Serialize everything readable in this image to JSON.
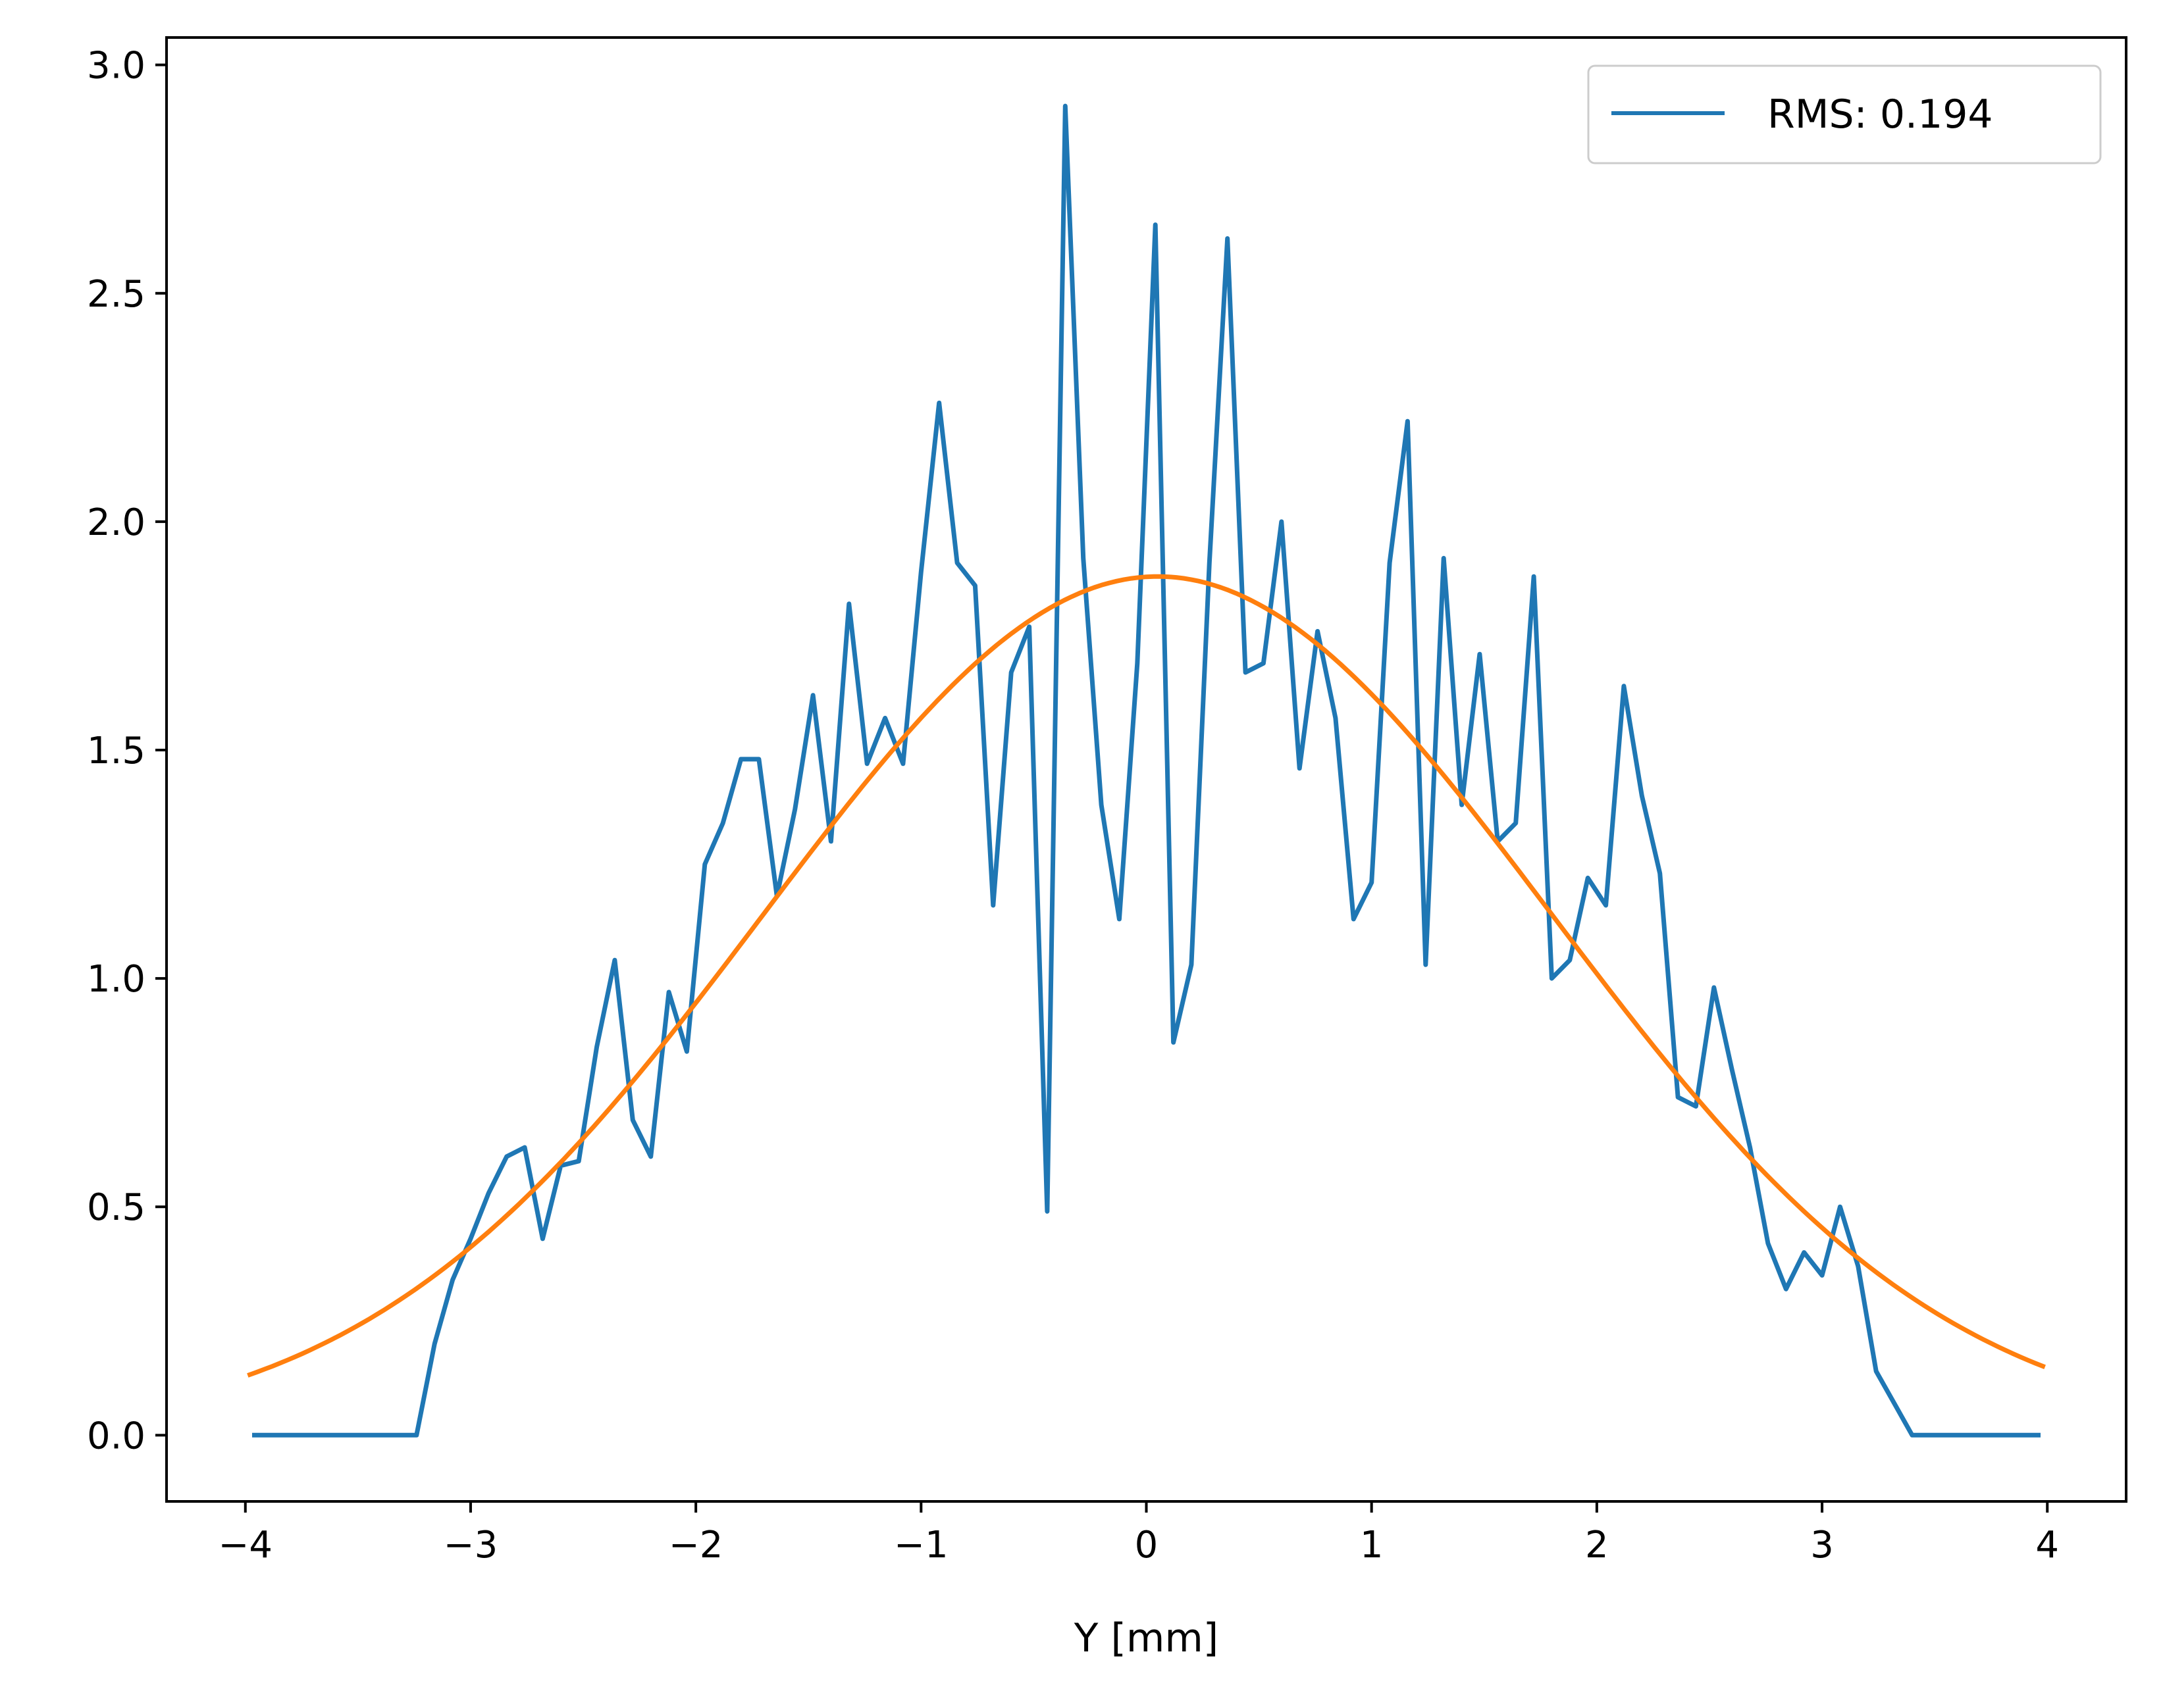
{
  "chart_data": {
    "type": "line",
    "xlabel": "Y [mm]",
    "ylabel": "",
    "title": "",
    "xlim": [
      -4.35,
      4.35
    ],
    "ylim": [
      -0.145,
      3.06
    ],
    "xticks": [
      -4,
      -3,
      -2,
      -1,
      0,
      1,
      2,
      3,
      4
    ],
    "xtick_labels": [
      "−4",
      "−3",
      "−2",
      "−1",
      "0",
      "1",
      "2",
      "3",
      "4"
    ],
    "yticks": [
      0.0,
      0.5,
      1.0,
      1.5,
      2.0,
      2.5,
      3.0
    ],
    "ytick_labels": [
      "0.0",
      "0.5",
      "1.0",
      "1.5",
      "2.0",
      "2.5",
      "3.0"
    ],
    "grid": false,
    "legend": {
      "placement": "upper right",
      "entries": [
        "RMS: 0.194"
      ]
    },
    "series": [
      {
        "name": "RMS: 0.194",
        "color": "#1f77b4",
        "x": [
          -3.96,
          -3.88,
          -3.8,
          -3.72,
          -3.64,
          -3.56,
          -3.48,
          -3.4,
          -3.32,
          -3.24,
          -3.16,
          -3.08,
          -3.0,
          -2.92,
          -2.84,
          -2.76,
          -2.68,
          -2.6,
          -2.52,
          -2.44,
          -2.36,
          -2.28,
          -2.2,
          -2.12,
          -2.04,
          -1.96,
          -1.88,
          -1.8,
          -1.72,
          -1.64,
          -1.56,
          -1.48,
          -1.4,
          -1.32,
          -1.24,
          -1.16,
          -1.08,
          -1.0,
          -0.92,
          -0.84,
          -0.76,
          -0.68,
          -0.6,
          -0.52,
          -0.44,
          -0.36,
          -0.28,
          -0.2,
          -0.12,
          -0.04,
          0.04,
          0.12,
          0.2,
          0.28,
          0.36,
          0.44,
          0.52,
          0.6,
          0.68,
          0.76,
          0.84,
          0.92,
          1.0,
          1.08,
          1.16,
          1.24,
          1.32,
          1.4,
          1.48,
          1.56,
          1.64,
          1.72,
          1.8,
          1.88,
          1.96,
          2.04,
          2.12,
          2.2,
          2.28,
          2.36,
          2.44,
          2.52,
          2.6,
          2.68,
          2.76,
          2.84,
          2.92,
          3.0,
          3.08,
          3.16,
          3.24,
          3.32,
          3.4,
          3.48,
          3.56,
          3.64,
          3.72,
          3.8,
          3.88,
          3.96
        ],
        "y": [
          0.0,
          0.0,
          0.0,
          0.0,
          0.0,
          0.0,
          0.0,
          0.0,
          0.0,
          0.0,
          0.2,
          0.34,
          0.43,
          0.53,
          0.61,
          0.63,
          0.43,
          0.59,
          0.6,
          0.85,
          1.04,
          0.69,
          0.61,
          0.97,
          0.84,
          1.25,
          1.34,
          1.48,
          1.48,
          1.18,
          1.37,
          1.62,
          1.3,
          1.82,
          1.47,
          1.57,
          1.47,
          1.89,
          2.26,
          1.91,
          1.86,
          1.16,
          1.67,
          1.77,
          0.49,
          2.91,
          1.92,
          1.38,
          1.13,
          1.69,
          2.65,
          0.86,
          1.03,
          1.91,
          2.62,
          1.67,
          1.69,
          2.0,
          1.46,
          1.76,
          1.57,
          1.13,
          1.21,
          1.91,
          2.22,
          1.03,
          1.92,
          1.38,
          1.71,
          1.3,
          1.34,
          1.88,
          1.0,
          1.04,
          1.22,
          1.16,
          1.64,
          1.4,
          1.23,
          0.74,
          0.72,
          0.98,
          0.8,
          0.63,
          0.42,
          0.32,
          0.4,
          0.35,
          0.5,
          0.37,
          0.14,
          0.07,
          0.0,
          0.0,
          0.0,
          0.0,
          0.0,
          0.0,
          0.0,
          0.0
        ]
      },
      {
        "color": "#ff7f0e",
        "fit": {
          "amplitude": 1.88,
          "center": 0.05,
          "sigma": 1.75
        },
        "x_range": [
          -3.98,
          3.98
        ]
      }
    ]
  }
}
